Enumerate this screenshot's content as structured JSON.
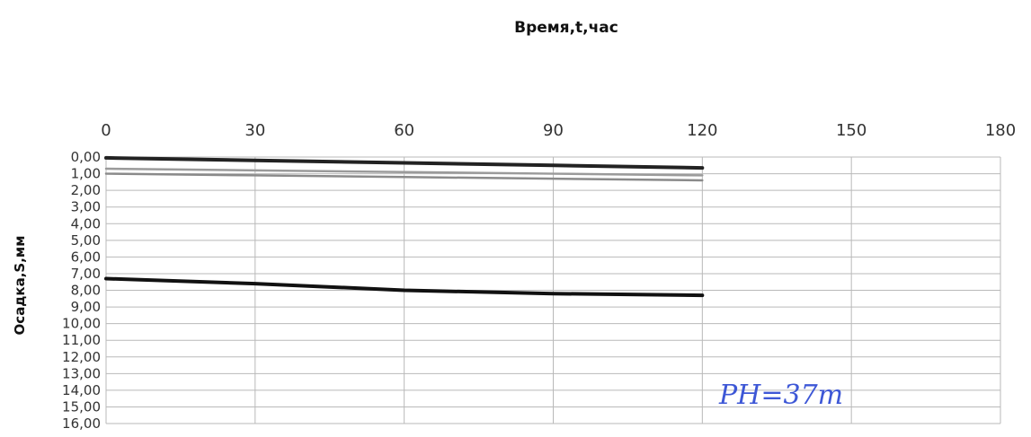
{
  "chart_data": {
    "type": "line",
    "title": "Время,t,час",
    "xlabel": "",
    "ylabel": "Осадка,S,мм",
    "xlim": [
      0,
      180
    ],
    "ylim": [
      0,
      16
    ],
    "y_inverted": true,
    "x_axis_position": "top",
    "x_ticks": [
      "0",
      "30",
      "60",
      "90",
      "120",
      "150",
      "180"
    ],
    "y_ticks": [
      "0,00",
      "1,00",
      "2,00",
      "3,00",
      "4,00",
      "5,00",
      "6,00",
      "7,00",
      "8,00",
      "9,00",
      "10,00",
      "11,00",
      "12,00",
      "13,00",
      "14,00",
      "15,00",
      "16,00"
    ],
    "grid": true,
    "series": [
      {
        "x": [
          0,
          30,
          60,
          90,
          120
        ],
        "values": [
          0.05,
          0.2,
          0.35,
          0.5,
          0.65
        ],
        "color": "#222222"
      },
      {
        "x": [
          0,
          30,
          60,
          90,
          120
        ],
        "values": [
          0.7,
          0.8,
          0.9,
          1.0,
          1.1
        ],
        "color": "#9a9a9a"
      },
      {
        "x": [
          0,
          30,
          60,
          90,
          120
        ],
        "values": [
          1.0,
          1.1,
          1.2,
          1.3,
          1.4
        ],
        "color": "#8a8a8a"
      },
      {
        "x": [
          0,
          30,
          60,
          90,
          120
        ],
        "values": [
          7.3,
          7.6,
          8.0,
          8.2,
          8.3
        ],
        "color": "#111111"
      }
    ],
    "annotations": [
      "РН=37т"
    ]
  }
}
